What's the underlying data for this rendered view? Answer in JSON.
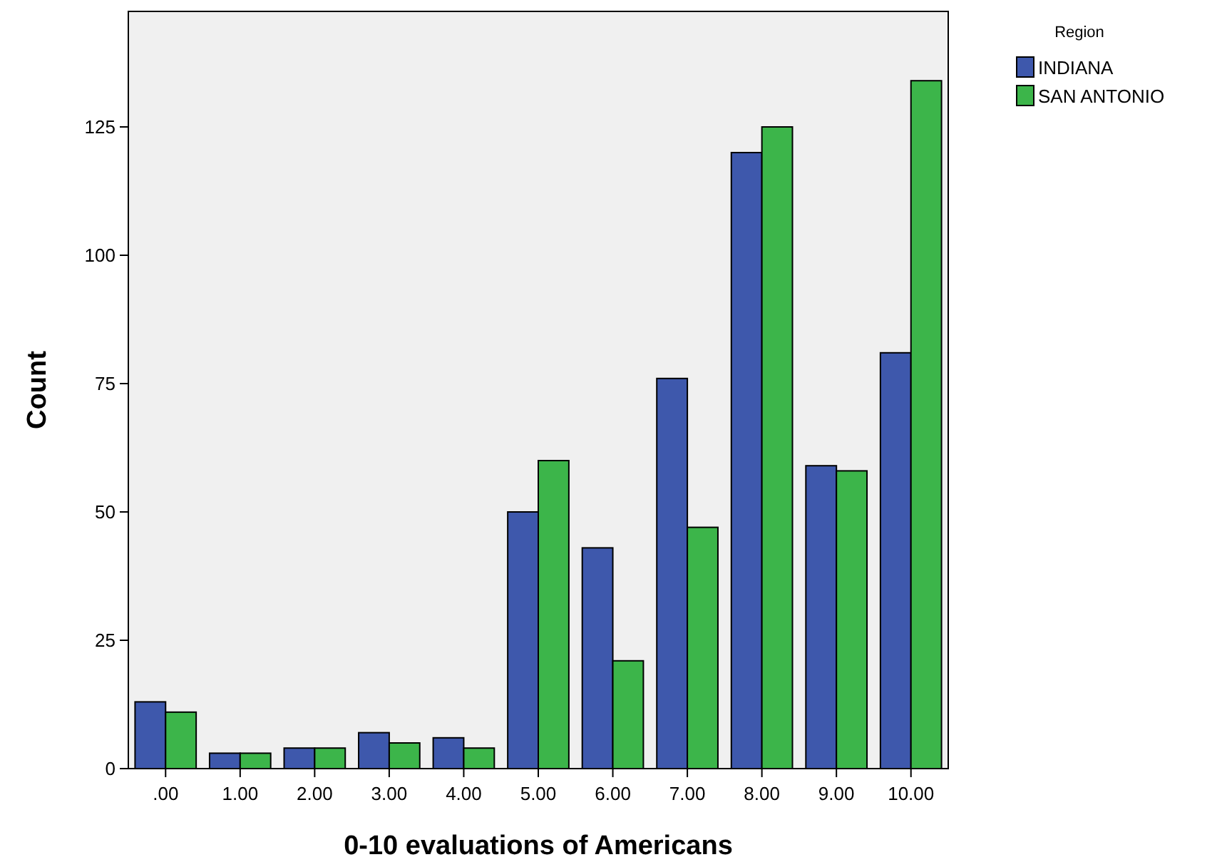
{
  "chart_data": {
    "type": "bar",
    "xlabel": "0-10 evaluations of Americans",
    "ylabel": "Count",
    "legend_title": "Region",
    "legend": "top right",
    "categories": [
      ".00",
      "1.00",
      "2.00",
      "3.00",
      "4.00",
      "5.00",
      "6.00",
      "7.00",
      "8.00",
      "9.00",
      "10.00"
    ],
    "series": [
      {
        "name": "INDIANA",
        "color": "#3e58ac",
        "values": [
          13,
          3,
          4,
          7,
          6,
          50,
          43,
          76,
          120,
          59,
          81
        ]
      },
      {
        "name": "SAN ANTONIO",
        "color": "#3cb54a",
        "values": [
          11,
          3,
          4,
          5,
          4,
          60,
          21,
          47,
          125,
          58,
          134
        ]
      }
    ],
    "ylim": [
      0,
      147.5
    ],
    "yticks": [
      0,
      25,
      50,
      75,
      100,
      125
    ],
    "grid": false
  }
}
